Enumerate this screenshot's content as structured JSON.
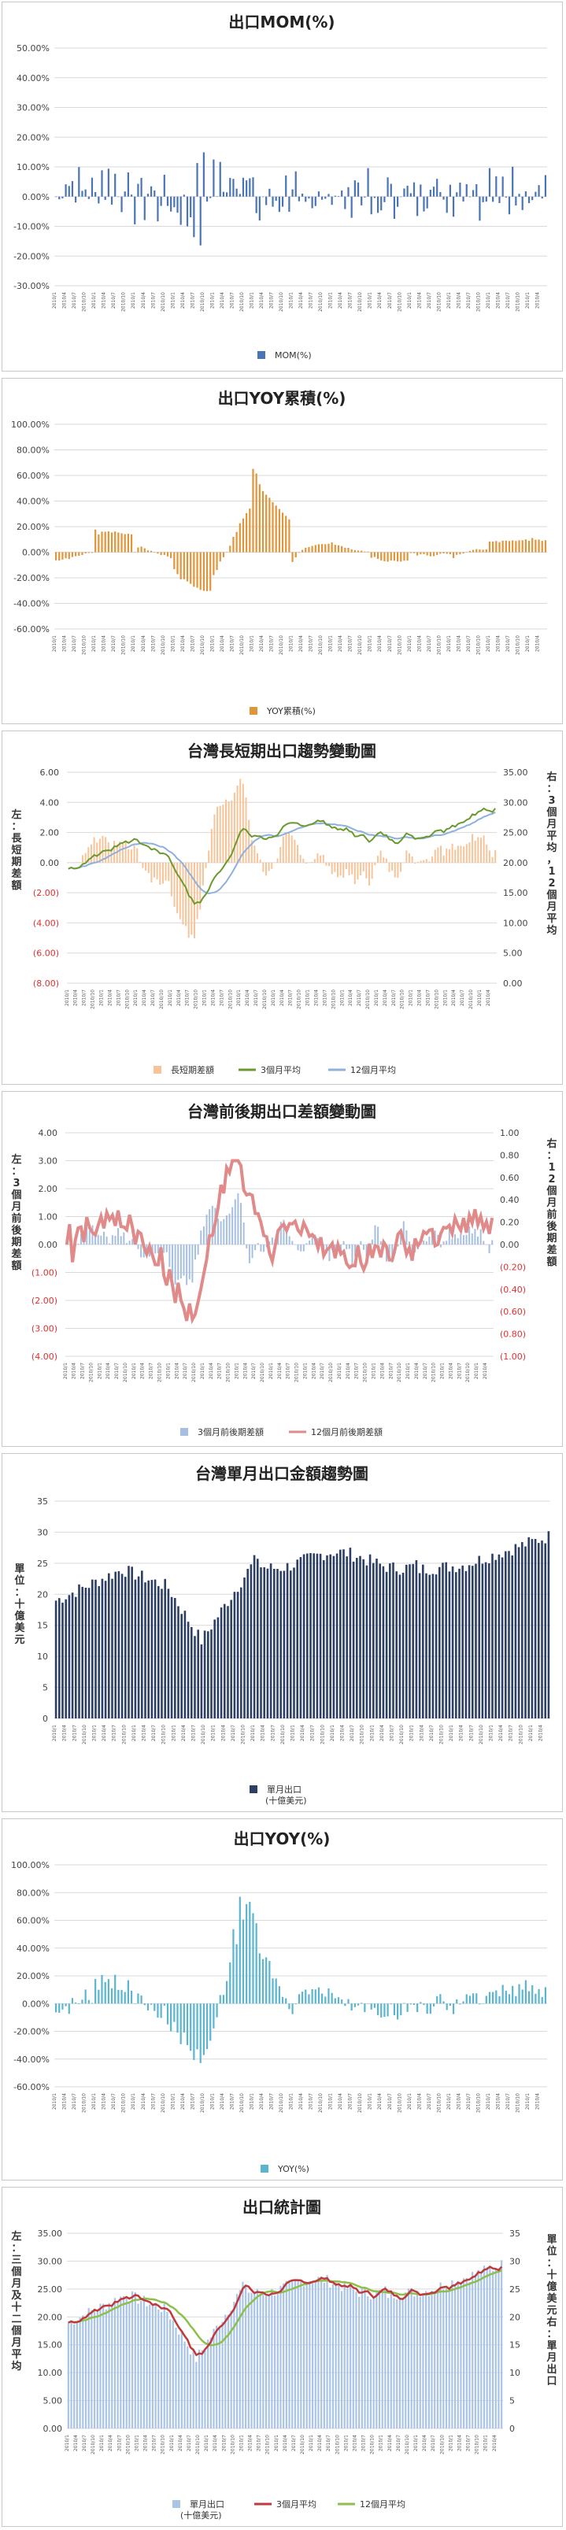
{
  "charts": [
    {
      "id": "mom",
      "title": "出口MOM(%)",
      "type": "bar",
      "color": "#4a74b5",
      "legend": "MOM(%)",
      "yticks": [
        "50.00%",
        "40.00%",
        "30.00%",
        "20.00%",
        "10.00%",
        "0.00%",
        "-10.00%",
        "-20.00%",
        "-30.00%"
      ],
      "ylim": [
        -30,
        50
      ]
    },
    {
      "id": "yoy_cum",
      "title": "出口YOY累積(%)",
      "type": "bar",
      "color": "#e0953a",
      "legend": "YOY累積(%)",
      "yticks": [
        "100.00%",
        "80.00%",
        "60.00%",
        "40.00%",
        "20.00%",
        "0.00%",
        "-20.00%",
        "-40.00%",
        "-60.00%"
      ],
      "ylim": [
        -60,
        100
      ]
    },
    {
      "id": "long_short",
      "title": "台灣長短期出口趨勢變動圖",
      "type": "bar+line",
      "yticks_left": [
        "6.00",
        "4.00",
        "2.00",
        "0.00",
        "(2.00)",
        "(4.00)",
        "(6.00)",
        "(8.00)"
      ],
      "yticks_right": [
        "35.00",
        "30.00",
        "25.00",
        "20.00",
        "15.00",
        "10.00",
        "5.00",
        "0.00"
      ],
      "left_axis_label": "左：長短期差額",
      "right_axis_label": "右：3個月平均，12個月平均",
      "legend": [
        "長短期差額",
        "3個月平均",
        "12個月平均"
      ],
      "colors": [
        "#f7c49a",
        "#6a9a2e",
        "#8db0dc"
      ]
    },
    {
      "id": "front_back",
      "title": "台灣前後期出口差額變動圖",
      "type": "bar+line",
      "yticks_left": [
        "4.00",
        "3.00",
        "2.00",
        "1.00",
        "0.00",
        "(1.00)",
        "(2.00)",
        "(3.00)",
        "(4.00)"
      ],
      "yticks_right": [
        "1.00",
        "0.80",
        "0.60",
        "0.40",
        "0.20",
        "0.00",
        "(0.20)",
        "(0.40)",
        "(0.60)",
        "(0.80)",
        "(1.00)"
      ],
      "left_axis_label": "左：3個月前後期差額",
      "right_axis_label": "右：12個月前後期差額",
      "legend": [
        "3個月前後期差額",
        "12個月前後期差額"
      ],
      "colors": [
        "#a7bfe0",
        "#e08a8a"
      ]
    },
    {
      "id": "monthly",
      "title": "台灣單月出口金額趨勢圖",
      "type": "bar",
      "color": "#2e3f66",
      "yticks": [
        "35",
        "30",
        "25",
        "20",
        "15",
        "10",
        "5",
        "0"
      ],
      "ylim": [
        0,
        35
      ],
      "left_axis_label": "單位：十億美元",
      "legend": "單月出口",
      "legend_sub": "(十億美元)"
    },
    {
      "id": "yoy",
      "title": "出口YOY(%)",
      "type": "bar",
      "color": "#5bb5cf",
      "legend": "YOY(%)",
      "yticks": [
        "100.00%",
        "80.00%",
        "60.00%",
        "40.00%",
        "20.00%",
        "0.00%",
        "-20.00%",
        "-40.00%",
        "-60.00%"
      ],
      "ylim": [
        -60,
        100
      ]
    },
    {
      "id": "stats",
      "title": "出口統計圖",
      "type": "bar+line",
      "yticks_left": [
        "35.00",
        "30.00",
        "25.00",
        "20.00",
        "15.00",
        "10.00",
        "5.00",
        "0.00"
      ],
      "yticks_right": [
        "35",
        "30",
        "25",
        "20",
        "15",
        "10",
        "5",
        "0"
      ],
      "left_axis_label": "左：三個月及十二個月平均",
      "right_axis_label": "單位：十億美元右：單月出口",
      "legend": [
        "單月出口",
        "3個月平均",
        "12個月平均"
      ],
      "legend_sub": "(十億美元)",
      "colors": [
        "#a9c4e6",
        "#c0393b",
        "#8cc04a"
      ]
    }
  ]
}
